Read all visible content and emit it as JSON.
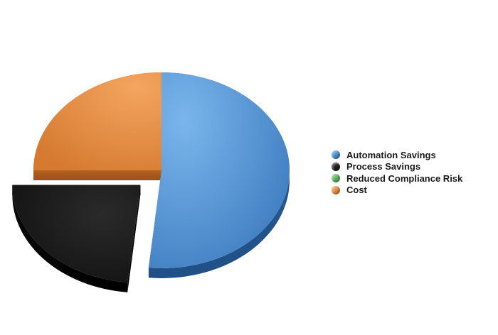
{
  "chart_data": {
    "type": "pie",
    "title": "",
    "style": "3d",
    "legend_position": "right",
    "exploded": [
      "Process Savings"
    ],
    "slices": [
      {
        "name": "Automation Savings",
        "value": 51.6,
        "color": "#4a8fd4"
      },
      {
        "name": "Process Savings",
        "value": 23.4,
        "color": "#1e1e1e"
      },
      {
        "name": "Reduced Compliance Risk",
        "value": 0,
        "color": "#5cb85c"
      },
      {
        "name": "Cost",
        "value": 25.0,
        "color": "#e88c3c"
      }
    ]
  }
}
